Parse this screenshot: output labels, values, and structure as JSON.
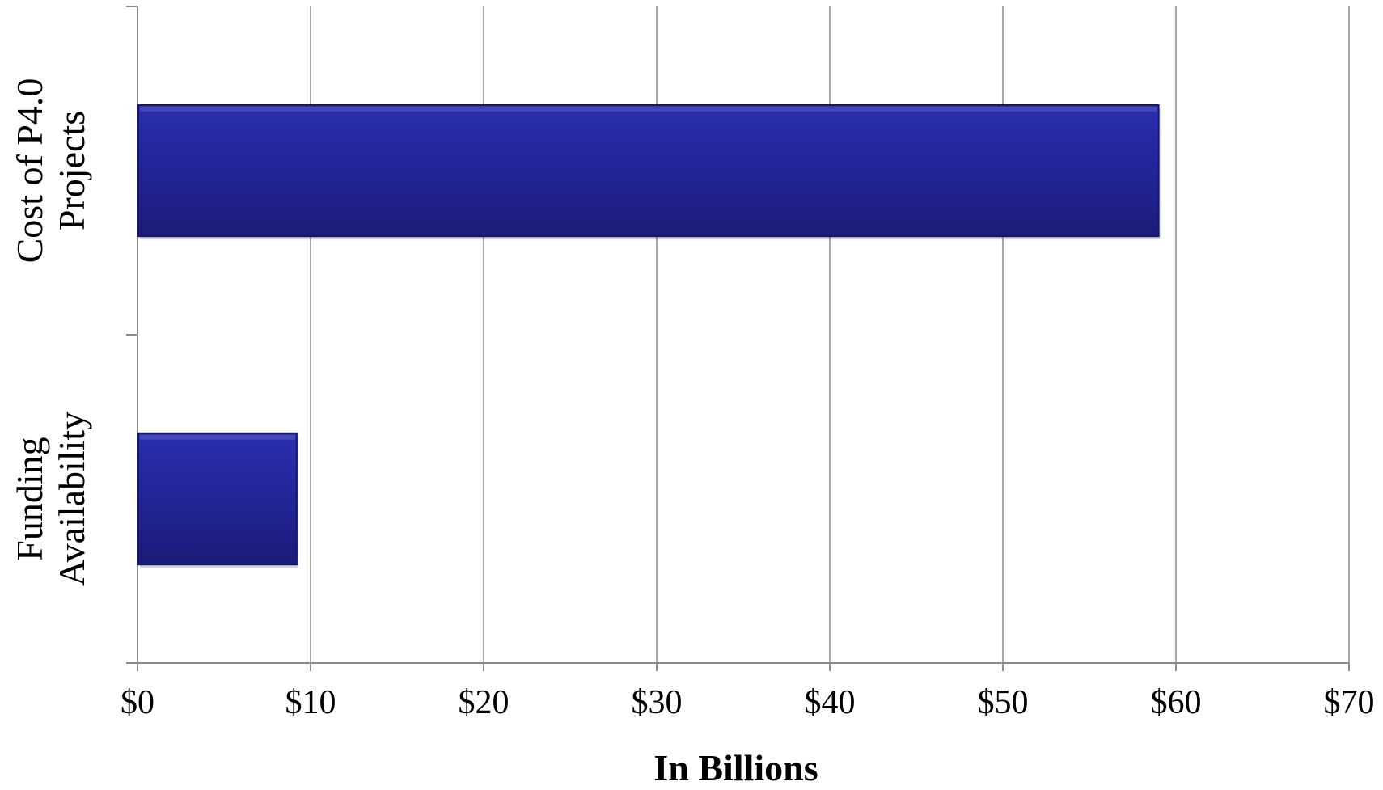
{
  "chart_data": {
    "type": "bar",
    "orientation": "horizontal",
    "categories": [
      [
        "Cost of P4.0",
        "Projects"
      ],
      [
        "Funding",
        "Availability"
      ]
    ],
    "values": [
      59,
      9.2
    ],
    "xlabel": "In Billions",
    "ylabel": "",
    "xlim": [
      0,
      70
    ],
    "xticks": [
      0,
      10,
      20,
      30,
      40,
      50,
      60,
      70
    ],
    "xtick_labels": [
      "$0",
      "$10",
      "$20",
      "$30",
      "$40",
      "$50",
      "$60",
      "$70"
    ],
    "grid": "vertical",
    "legend": "none",
    "colors": {
      "bar_top": "#2b2fae",
      "bar_mid": "#23259a",
      "bar_bottom": "#1b1c78",
      "bar_edge": "#15166a"
    }
  }
}
